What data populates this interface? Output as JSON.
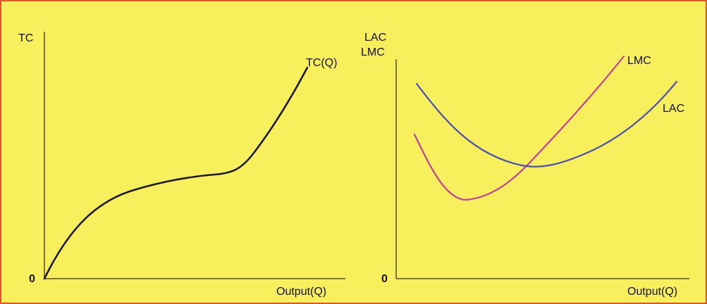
{
  "colors": {
    "background": "#f7ef5c",
    "border": "#e4572e",
    "axis": "#2b2b2b",
    "tc_curve": "#1a1a1a",
    "lac_curve": "#4a4fb5",
    "lmc_curve": "#c2409a"
  },
  "left_panel": {
    "y_axis_label": "TC",
    "x_axis_label": "Output(Q)",
    "origin_label": "0",
    "curve_label": "TC(Q)"
  },
  "right_panel": {
    "y_axis_label_line1": "LAC",
    "y_axis_label_line2": "LMC",
    "x_axis_label": "Output(Q)",
    "origin_label": "0",
    "lmc_label": "LMC",
    "lac_label": "LAC"
  }
}
